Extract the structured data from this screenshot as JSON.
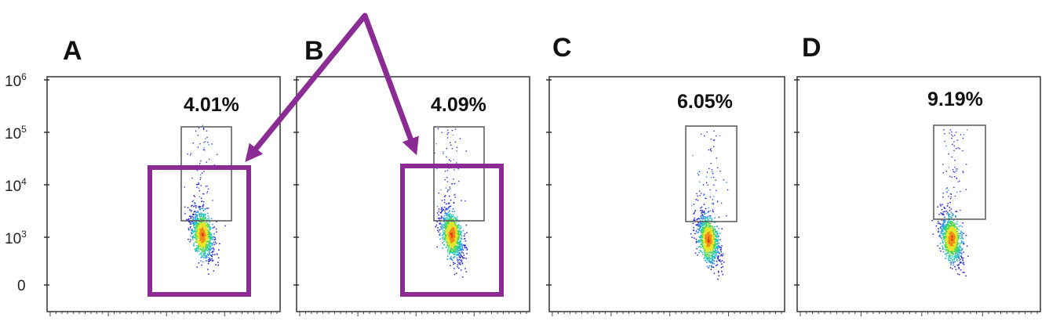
{
  "colors": {
    "highlight": "#8B2B94",
    "axis": "#333333",
    "gate": "#555555",
    "density": [
      "#2a2ad8",
      "#2f8fe8",
      "#25c6b8",
      "#52d652",
      "#e6e62a",
      "#f08a1a",
      "#e0301e"
    ]
  },
  "chart_data": [
    {
      "type": "scatter",
      "panel": "A",
      "gate_percentage": "4.01%",
      "y_scale": "log",
      "ytick_labels": [
        "10^6",
        "10^5",
        "10^4",
        "10^3",
        "0"
      ],
      "yticks": [
        1000000,
        100000,
        10000,
        1000,
        0
      ],
      "ylim": [
        0,
        1000000
      ],
      "gate": {
        "y_range": [
          2000,
          130000
        ]
      },
      "highlighted": true
    },
    {
      "type": "scatter",
      "panel": "B",
      "gate_percentage": "4.09%",
      "y_scale": "log",
      "ylim": [
        0,
        1000000
      ],
      "gate": {
        "y_range": [
          2000,
          130000
        ]
      },
      "highlighted": true
    },
    {
      "type": "scatter",
      "panel": "C",
      "gate_percentage": "6.05%",
      "y_scale": "log",
      "ylim": [
        0,
        1000000
      ],
      "gate": {
        "y_range": [
          2000,
          130000
        ]
      },
      "highlighted": false
    },
    {
      "type": "scatter",
      "panel": "D",
      "gate_percentage": "9.19%",
      "y_scale": "log",
      "ylim": [
        0,
        1000000
      ],
      "gate": {
        "y_range": [
          2000,
          130000
        ]
      },
      "highlighted": false
    }
  ]
}
